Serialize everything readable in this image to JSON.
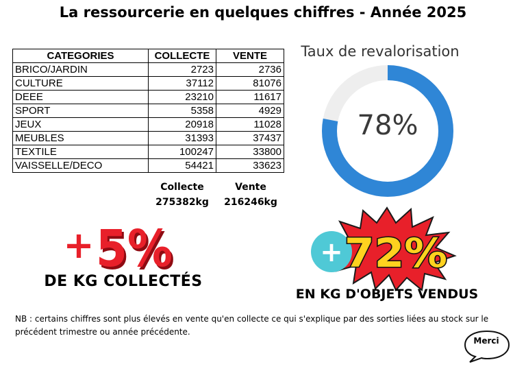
{
  "title": "La ressourcerie en quelques chiffres - Année 2025",
  "table": {
    "headers": [
      "CATEGORIES",
      "COLLECTE",
      "VENTE"
    ],
    "rows": [
      {
        "category": "BRICO/JARDIN",
        "collecte": "2723",
        "vente": "2736"
      },
      {
        "category": "CULTURE",
        "collecte": "37112",
        "vente": "81076"
      },
      {
        "category": "DEEE",
        "collecte": "23210",
        "vente": "11617"
      },
      {
        "category": "SPORT",
        "collecte": "5358",
        "vente": "4929"
      },
      {
        "category": "JEUX",
        "collecte": "20918",
        "vente": "11028"
      },
      {
        "category": "MEUBLES",
        "collecte": "31393",
        "vente": "37437"
      },
      {
        "category": "TEXTILE",
        "collecte": "100247",
        "vente": "33800"
      },
      {
        "category": "VAISSELLE/DECO",
        "collecte": "54421",
        "vente": "33623"
      }
    ]
  },
  "totals": {
    "collecte_label": "Collecte",
    "collecte_value": "275382kg",
    "vente_label": "Vente",
    "vente_value": "216246kg"
  },
  "gauge": {
    "title": "Taux de revalorisation",
    "value_label": "78%",
    "fraction": 0.78,
    "color": "#2f86d6",
    "track_color": "#eeeeee"
  },
  "stat_collecte": {
    "sign": "+",
    "value": "5%",
    "caption": "DE KG COLLECTÉS",
    "color": "#e8202a"
  },
  "stat_vente": {
    "sign": "+",
    "value": "72%",
    "caption": "EN KG D'OBJETS VENDUS",
    "circle_color": "#4fc9d6",
    "text_color": "#ffd21f",
    "burst_color": "#e8202a"
  },
  "note": "NB : certains chiffres sont plus élevés en vente qu'en collecte ce qui s'explique par des sorties liées au stock sur le précédent trimestre ou année précédente.",
  "bubble_text": "Merci"
}
